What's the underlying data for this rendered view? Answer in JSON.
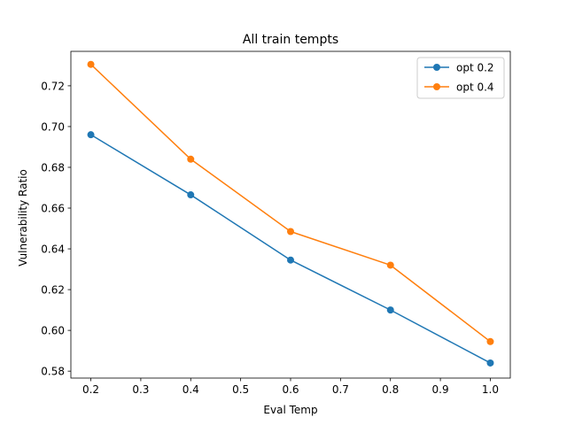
{
  "chart_data": {
    "type": "line",
    "title": "All train tempts",
    "xlabel": "Eval Temp",
    "ylabel": "Vulnerability Ratio",
    "x": [
      0.2,
      0.4,
      0.6,
      0.8,
      1.0
    ],
    "xlim": [
      0.16,
      1.04
    ],
    "ylim": [
      0.5766,
      0.7369
    ],
    "xticks": [
      0.2,
      0.3,
      0.4,
      0.5,
      0.6,
      0.7,
      0.8,
      0.9,
      1.0
    ],
    "xtick_labels": [
      "0.2",
      "0.3",
      "0.4",
      "0.5",
      "0.6",
      "0.7",
      "0.8",
      "0.9",
      "1.0"
    ],
    "yticks": [
      0.58,
      0.6,
      0.62,
      0.64,
      0.66,
      0.68,
      0.7,
      0.72
    ],
    "ytick_labels": [
      "0.58",
      "0.60",
      "0.62",
      "0.64",
      "0.66",
      "0.68",
      "0.70",
      "0.72"
    ],
    "grid": false,
    "legend_position": "top-right",
    "series": [
      {
        "name": "opt 0.2",
        "color": "#1f77b4",
        "marker": "circle",
        "values": [
          0.696,
          0.6665,
          0.6345,
          0.61,
          0.584
        ]
      },
      {
        "name": "opt 0.4",
        "color": "#ff7f0e",
        "marker": "circle",
        "values": [
          0.7305,
          0.684,
          0.6485,
          0.632,
          0.5945
        ]
      }
    ]
  }
}
